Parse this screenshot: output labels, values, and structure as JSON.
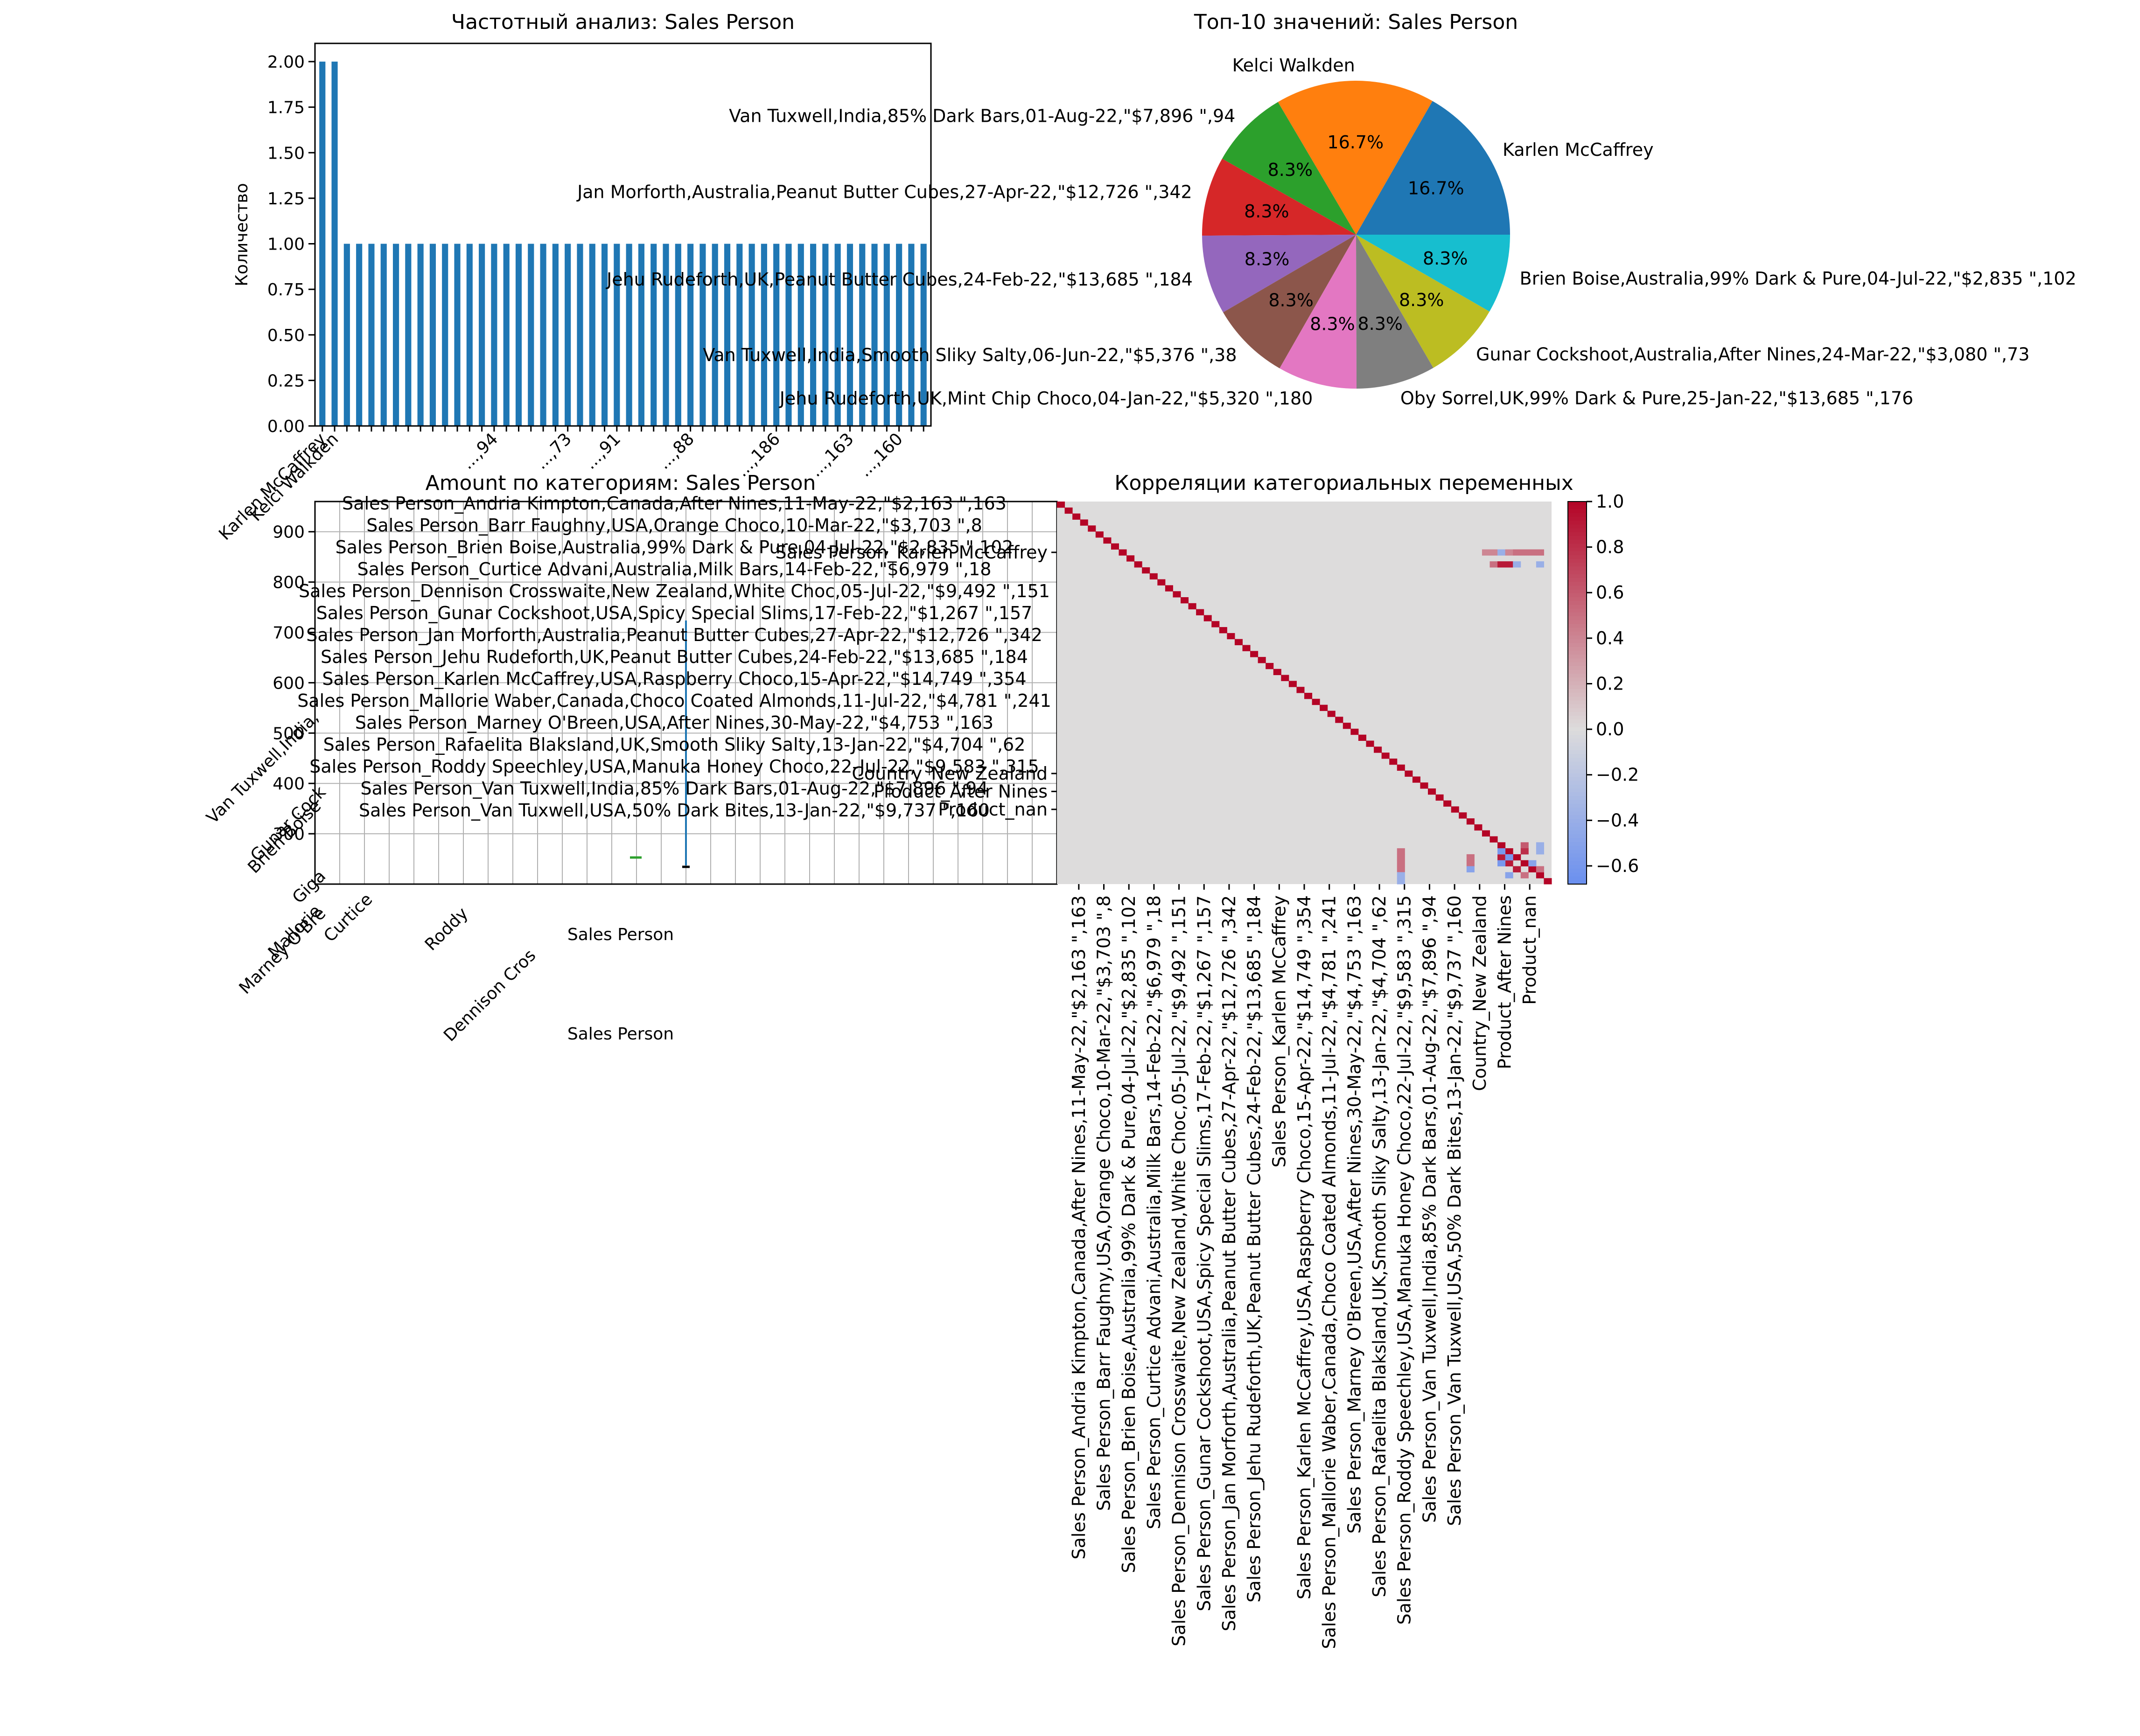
{
  "colors": {
    "bar": "#1f77b4",
    "pie": [
      "#1f77b4",
      "#ff7f0e",
      "#2ca02c",
      "#d62728",
      "#9467bd",
      "#8c564b",
      "#e377c2",
      "#7f7f7f",
      "#bcbd22",
      "#17becf"
    ],
    "heat_low": "#6a8fef",
    "heat_mid": "#dddcdc",
    "heat_high": "#b40426"
  },
  "chart_data": [
    {
      "type": "bar",
      "title": "Частотный анализ: Sales Person",
      "ylabel": "Количество",
      "xlabel": "",
      "ylim": [
        0,
        2.1
      ],
      "yticks": [
        "0.00",
        "0.25",
        "0.50",
        "0.75",
        "1.00",
        "1.25",
        "1.50",
        "1.75",
        "2.00"
      ],
      "ytick_values": [
        0,
        0.25,
        0.5,
        0.75,
        1.0,
        1.25,
        1.5,
        1.75,
        2.0
      ],
      "values": [
        2,
        2,
        1,
        1,
        1,
        1,
        1,
        1,
        1,
        1,
        1,
        1,
        1,
        1,
        1,
        1,
        1,
        1,
        1,
        1,
        1,
        1,
        1,
        1,
        1,
        1,
        1,
        1,
        1,
        1,
        1,
        1,
        1,
        1,
        1,
        1,
        1,
        1,
        1,
        1,
        1,
        1,
        1,
        1,
        1,
        1,
        1,
        1,
        1,
        1
      ],
      "categories_visible": [
        "Karlen McCaffrey",
        "Kelci Walkden",
        "...,94",
        "...,73",
        "...,91",
        "...,88",
        "...,186",
        "...,163",
        "...,160"
      ],
      "grid": false
    },
    {
      "type": "pie",
      "title": "Топ-10 значений: Sales Person",
      "labels": [
        "Karlen McCaffrey",
        "Kelci Walkden",
        "Van Tuxwell,India,85% Dark Bars,01-Aug-22,\"$7,896 \",94",
        "Jan Morforth,Australia,Peanut Butter Cubes,27-Apr-22,\"$12,726 \",342",
        "Jehu Rudeforth,UK,Peanut Butter Cubes,24-Feb-22,\"$13,685 \",184",
        "Van Tuxwell,India,Smooth Sliky Salty,06-Jun-22,\"$5,376 \",38",
        "Jehu Rudeforth,UK,Mint Chip Choco,04-Jan-22,\"$5,320 \",180",
        "Oby Sorrel,UK,99% Dark & Pure,25-Jan-22,\"$13,685 \",176",
        "Gunar Cockshoot,Australia,After Nines,24-Mar-22,\"$3,080 \",73",
        "Brien Boise,Australia,99% Dark & Pure,04-Jul-22,\"$2,835 \",102"
      ],
      "values": [
        16.7,
        16.7,
        8.3,
        8.3,
        8.3,
        8.3,
        8.3,
        8.3,
        8.3,
        8.3
      ],
      "pct_labels": [
        "16.7%",
        "16.7%",
        "8.3%",
        "8.3%",
        "8.3%",
        "8.3%",
        "8.3%",
        "8.3%",
        "8.3%",
        "8.3%"
      ]
    },
    {
      "type": "box",
      "title": "Amount по категориям: Sales Person",
      "xlabel": "Sales Person",
      "xlabel2": "Sales Person",
      "yticks": [
        "300",
        "400",
        "500",
        "600",
        "700",
        "800",
        "900"
      ],
      "ytick_values": [
        300,
        400,
        500,
        600,
        700,
        800,
        900
      ],
      "ylim": [
        200,
        960
      ],
      "grid": true,
      "x_category_labels_visible": [
        "Van Tuxwell,India,",
        "Gunar Cock",
        "Brien Boise",
        "Marney O'Bre",
        "Dennison Cros",
        "Roddy",
        "Curtice",
        "Mallorie",
        "Giga"
      ],
      "legend": [
        "Sales Person_Andria Kimpton,Canada,After Nines,11-May-22,\"$2,163 \",163",
        "Sales Person_Barr Faughny,USA,Orange Choco,10-Mar-22,\"$3,703 \",8",
        "Sales Person_Brien Boise,Australia,99% Dark & Pure,04-Jul-22,\"$2,835 \",102",
        "Sales Person_Curtice Advani,Australia,Milk Bars,14-Feb-22,\"$6,979 \",18",
        "Sales Person_Dennison Crosswaite,New Zealand,White Choc,05-Jul-22,\"$9,492 \",151",
        "Sales Person_Gunar Cockshoot,USA,Spicy Special Slims,17-Feb-22,\"$1,267 \",157",
        "Sales Person_Jan Morforth,Australia,Peanut Butter Cubes,27-Apr-22,\"$12,726 \",342",
        "Sales Person_Jehu Rudeforth,UK,Peanut Butter Cubes,24-Feb-22,\"$13,685 \",184",
        "Sales Person_Karlen McCaffrey,USA,Raspberry Choco,15-Apr-22,\"$14,749 \",354",
        "Sales Person_Mallorie Waber,Canada,Choco Coated Almonds,11-Jul-22,\"$4,781 \",241",
        "Sales Person_Marney O'Breen,USA,After Nines,30-May-22,\"$4,753 \",163",
        "Sales Person_Rafaelita Blaksland,UK,Smooth Sliky Salty,13-Jan-22,\"$4,704 \",62",
        "Sales Person_Roddy Speechley,USA,Manuka Honey Choco,22-Jul-22,\"$9,583 \",315",
        "Sales Person_Van Tuxwell,India,85% Dark Bars,01-Aug-22,\"$7,896 \",94",
        "Sales Person_Van Tuxwell,USA,50% Dark Bites,13-Jan-22,\"$9,737 \",160"
      ]
    },
    {
      "type": "heatmap",
      "title": "Корреляции категориальных переменных",
      "y_labels": [
        "Sales Person_Karlen McCaffrey",
        "Country_New Zealand",
        "Product_After Nines",
        "Product_nan"
      ],
      "x_labels": [
        "Sales Person_Andria Kimpton,Canada,After Nines,11-May-22,\"$2,163 \",163",
        "Sales Person_Barr Faughny,USA,Orange Choco,10-Mar-22,\"$3,703 \",8",
        "Sales Person_Brien Boise,Australia,99% Dark & Pure,04-Jul-22,\"$2,835 \",102",
        "Sales Person_Curtice Advani,Australia,Milk Bars,14-Feb-22,\"$6,979 \",18",
        "Sales Person_Dennison Crosswaite,New Zealand,White Choc,05-Jul-22,\"$9,492 \",151",
        "Sales Person_Gunar Cockshoot,USA,Spicy Special Slims,17-Feb-22,\"$1,267 \",157",
        "Sales Person_Jan Morforth,Australia,Peanut Butter Cubes,27-Apr-22,\"$12,726 \",342",
        "Sales Person_Jehu Rudeforth,UK,Peanut Butter Cubes,24-Feb-22,\"$13,685 \",184",
        "Sales Person_Karlen McCaffrey",
        "Sales Person_Karlen McCaffrey,USA,Raspberry Choco,15-Apr-22,\"$14,749 \",354",
        "Sales Person_Mallorie Waber,Canada,Choco Coated Almonds,11-Jul-22,\"$4,781 \",241",
        "Sales Person_Marney O'Breen,USA,After Nines,30-May-22,\"$4,753 \",163",
        "Sales Person_Rafaelita Blaksland,UK,Smooth Sliky Salty,13-Jan-22,\"$4,704 \",62",
        "Sales Person_Roddy Speechley,USA,Manuka Honey Choco,22-Jul-22,\"$9,583 \",315",
        "Sales Person_Van Tuxwell,India,85% Dark Bars,01-Aug-22,\"$7,896 \",94",
        "Sales Person_Van Tuxwell,USA,50% Dark Bites,13-Jan-22,\"$9,737 \",160",
        "Country_New Zealand",
        "Product_After Nines",
        "Product_nan"
      ],
      "colorbar_ticks": [
        "1.0",
        "0.8",
        "0.6",
        "0.4",
        "0.2",
        "0.0",
        "−0.2",
        "−0.4",
        "−0.6"
      ],
      "colorbar_values": [
        1.0,
        0.8,
        0.6,
        0.4,
        0.2,
        0.0,
        -0.2,
        -0.4,
        -0.6
      ],
      "vmin": -0.68,
      "vmax": 1.0,
      "n": 64,
      "diagonal": 1.0
    }
  ]
}
